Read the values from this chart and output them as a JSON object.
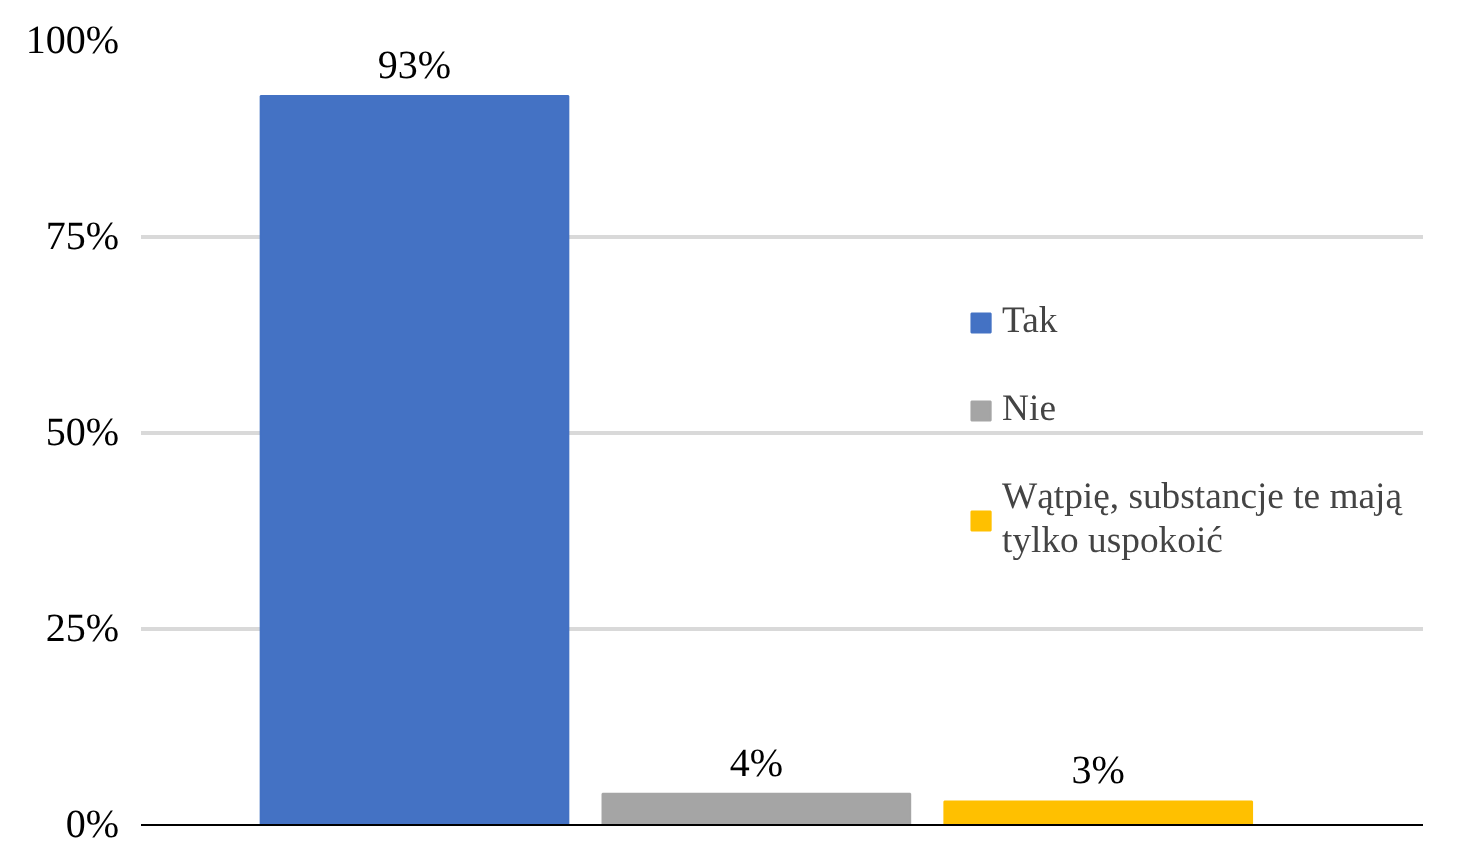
{
  "chart_data": {
    "type": "bar",
    "categories": [
      null
    ],
    "series": [
      {
        "name": "Tak",
        "color": "#4472c4",
        "values": [
          93
        ],
        "value_labels": [
          "93%"
        ]
      },
      {
        "name": "Nie",
        "color": "#a5a5a5",
        "values": [
          4
        ],
        "value_labels": [
          "4%"
        ]
      },
      {
        "name": "Wątpię, substancje te mają tylko uspokoić",
        "color": "#ffc000",
        "values": [
          3
        ],
        "value_labels": [
          "3%"
        ]
      }
    ],
    "ylim": [
      0,
      100
    ],
    "yticks": [
      {
        "value": 0,
        "label": "0%"
      },
      {
        "value": 25,
        "label": "25%"
      },
      {
        "value": 50,
        "label": "50%"
      },
      {
        "value": 75,
        "label": "75%"
      },
      {
        "value": 100,
        "label": "100%"
      }
    ],
    "grid": "y",
    "legend": "right"
  }
}
